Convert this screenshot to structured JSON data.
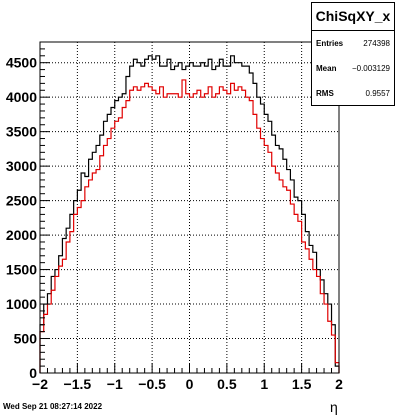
{
  "stats": {
    "title": "ChiSqXY_x",
    "entries_label": "Entries",
    "entries_value": "274398",
    "mean_label": "Mean",
    "mean_value": "−0.003129",
    "rms_label": "RMS",
    "rms_value": "0.9557"
  },
  "footer": {
    "timestamp": "Wed Sep 21 08:27:14 2022"
  },
  "chart_data": {
    "type": "histogram",
    "xlabel": "η",
    "ylabel": "",
    "xlim": [
      -2,
      2
    ],
    "ylim": [
      0,
      4800
    ],
    "xticks": [
      "−2",
      "−1.5",
      "−1",
      "−0.5",
      "0",
      "0.5",
      "1",
      "1.5",
      "2"
    ],
    "xtick_values": [
      -2,
      -1.5,
      -1,
      -0.5,
      0,
      0.5,
      1,
      1.5,
      2
    ],
    "yticks": [
      0,
      500,
      1000,
      1500,
      2000,
      2500,
      3000,
      3500,
      4000,
      4500
    ],
    "grid": true,
    "bin_edges_start": -2.0,
    "bin_width": 0.05,
    "colors": {
      "series1": "#000000",
      "series2": "#e00000"
    },
    "series": [
      {
        "color": "#000000",
        "values": [
          700,
          1000,
          1150,
          1400,
          1500,
          1700,
          1950,
          2100,
          2300,
          2500,
          2650,
          2900,
          2850,
          3100,
          3200,
          3300,
          3450,
          3650,
          3750,
          3850,
          3950,
          4000,
          4050,
          4300,
          4450,
          4550,
          4500,
          4450,
          4550,
          4600,
          4550,
          4600,
          4450,
          4450,
          4550,
          4400,
          4450,
          4500,
          4400,
          4450,
          4500,
          4450,
          4450,
          4500,
          4450,
          4550,
          4400,
          4450,
          4550,
          4450,
          4450,
          4600,
          4500,
          4500,
          4450,
          4450,
          4350,
          4200,
          4000,
          3900,
          3750,
          3650,
          3450,
          3300,
          3250,
          3100,
          2950,
          2800,
          2550,
          2500,
          2300,
          2050,
          1850,
          1750,
          1500,
          1350,
          1150,
          1000,
          700,
          100
        ]
      },
      {
        "color": "#e00000",
        "values": [
          600,
          850,
          1000,
          1200,
          1400,
          1550,
          1650,
          1900,
          2050,
          2300,
          2400,
          2500,
          2700,
          2800,
          2900,
          2950,
          3150,
          3300,
          3400,
          3550,
          3650,
          3700,
          3850,
          3950,
          4100,
          4150,
          4100,
          4150,
          4200,
          4150,
          4100,
          4050,
          4150,
          4000,
          4050,
          4050,
          4050,
          4000,
          4250,
          4050,
          4000,
          4050,
          4100,
          4000,
          4050,
          4150,
          4000,
          4050,
          4150,
          4100,
          4050,
          4200,
          4100,
          4150,
          4100,
          4000,
          3950,
          3750,
          3550,
          3400,
          3300,
          3200,
          3000,
          2900,
          2800,
          2700,
          2650,
          2450,
          2300,
          2200,
          1900,
          1800,
          1650,
          1500,
          1400,
          1150,
          1000,
          750,
          550,
          150
        ]
      }
    ]
  }
}
